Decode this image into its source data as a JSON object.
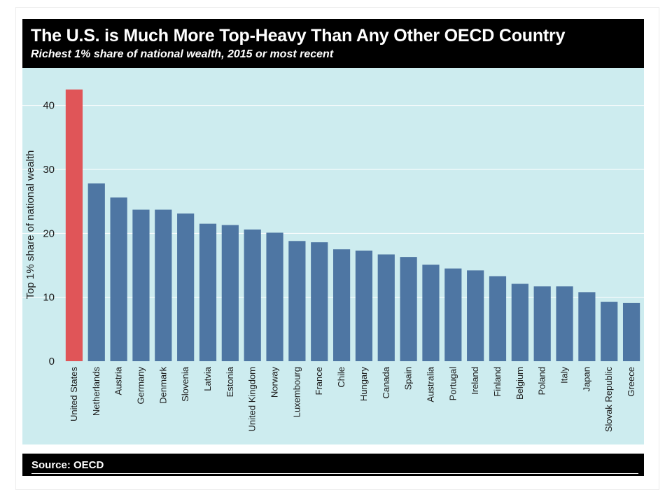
{
  "header": {
    "title": "The U.S. is Much More Top-Heavy Than Any Other OECD Country",
    "subtitle": "Richest 1% share of national wealth, 2015 or most recent"
  },
  "footer": {
    "source": "Source: OECD"
  },
  "colors": {
    "highlight_bar": "#e05558",
    "bar": "#4e76a3",
    "panel_background": "#cdecef",
    "gridline": "#ffffff"
  },
  "chart_data": {
    "type": "bar",
    "title": "The U.S. is Much More Top-Heavy Than Any Other OECD Country",
    "subtitle": "Richest 1% share of national wealth, 2015 or most recent",
    "xlabel": "",
    "ylabel": "Top 1% share of national wealth",
    "ylim": [
      0,
      45
    ],
    "yticks": [
      0,
      10,
      20,
      30,
      40
    ],
    "grid": true,
    "highlight": "United States",
    "categories": [
      "United States",
      "Netherlands",
      "Austria",
      "Germany",
      "Denmark",
      "Slovenia",
      "Latvia",
      "Estonia",
      "United Kingdom",
      "Norway",
      "Luxembourg",
      "France",
      "Chile",
      "Hungary",
      "Canada",
      "Spain",
      "Australia",
      "Portugal",
      "Ireland",
      "Finland",
      "Belgium",
      "Poland",
      "Italy",
      "Japan",
      "Slovak Republic",
      "Greece"
    ],
    "values": [
      42.5,
      27.8,
      25.6,
      23.7,
      23.7,
      23.1,
      21.5,
      21.3,
      20.6,
      20.1,
      18.8,
      18.6,
      17.5,
      17.3,
      16.7,
      16.3,
      15.1,
      14.5,
      14.2,
      13.3,
      12.1,
      11.7,
      11.7,
      10.8,
      9.3,
      9.1
    ]
  }
}
